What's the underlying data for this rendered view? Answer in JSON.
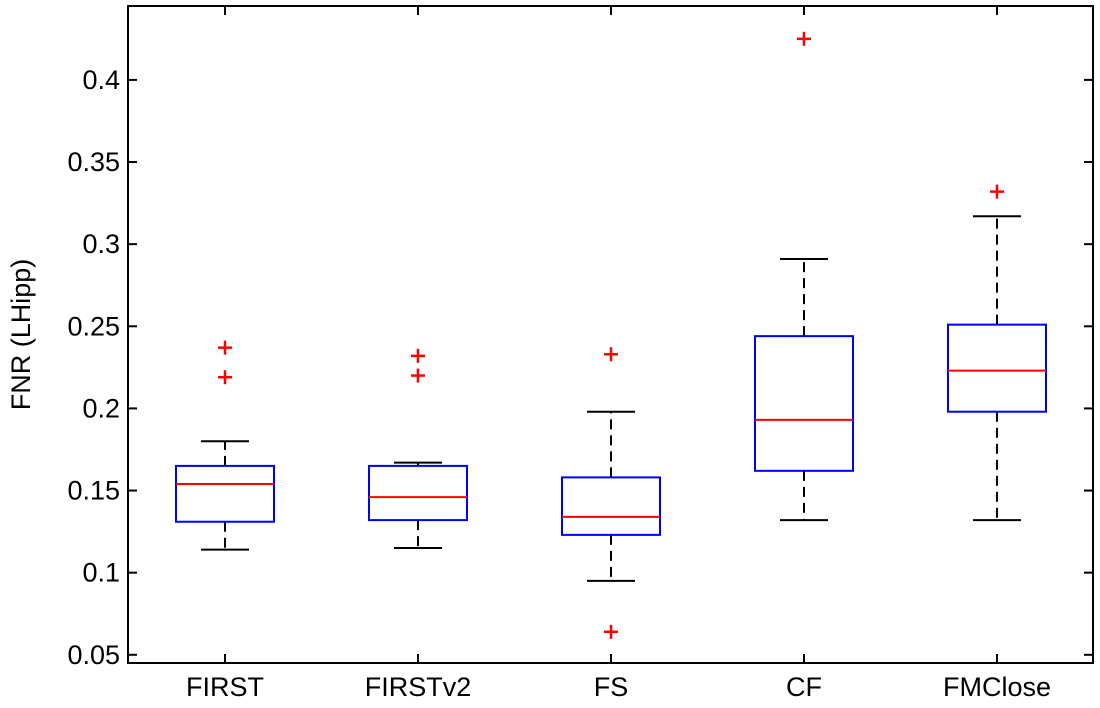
{
  "chart_data": {
    "type": "boxplot",
    "title": "",
    "xlabel": "",
    "ylabel": "FNR (LHipp)",
    "ylim": [
      0.045,
      0.445
    ],
    "yticks": [
      0.05,
      0.1,
      0.15,
      0.2,
      0.25,
      0.3,
      0.35,
      0.4
    ],
    "ytick_labels": [
      "0.05",
      "0.1",
      "0.15",
      "0.2",
      "0.25",
      "0.3",
      "0.35",
      "0.4"
    ],
    "grid": false,
    "legend": "none",
    "categories": [
      "FIRST",
      "FIRSTv2",
      "FS",
      "CF",
      "FMClose"
    ],
    "colors": {
      "box": "#0000ff",
      "median": "#ff0000",
      "whisker": "#000000",
      "outlier": "#ff0000"
    },
    "boxes": [
      {
        "name": "FIRST",
        "whisker_low": 0.114,
        "q1": 0.131,
        "median": 0.154,
        "q3": 0.165,
        "whisker_high": 0.18,
        "outliers": [
          0.219,
          0.237
        ]
      },
      {
        "name": "FIRSTv2",
        "whisker_low": 0.115,
        "q1": 0.132,
        "median": 0.146,
        "q3": 0.165,
        "whisker_high": 0.167,
        "outliers": [
          0.22,
          0.232
        ]
      },
      {
        "name": "FS",
        "whisker_low": 0.095,
        "q1": 0.123,
        "median": 0.134,
        "q3": 0.158,
        "whisker_high": 0.198,
        "outliers": [
          0.064,
          0.233
        ]
      },
      {
        "name": "CF",
        "whisker_low": 0.132,
        "q1": 0.162,
        "median": 0.193,
        "q3": 0.244,
        "whisker_high": 0.291,
        "outliers": [
          0.425
        ]
      },
      {
        "name": "FMClose",
        "whisker_low": 0.132,
        "q1": 0.198,
        "median": 0.223,
        "q3": 0.251,
        "whisker_high": 0.317,
        "outliers": [
          0.332
        ]
      }
    ]
  }
}
